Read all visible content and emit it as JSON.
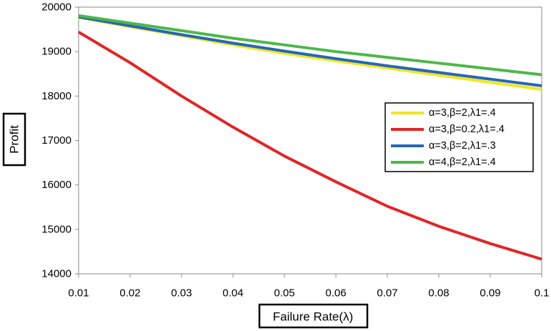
{
  "chart_data": {
    "type": "line",
    "title": "",
    "xlabel": "Failure Rate(λ)",
    "ylabel": "Profit",
    "x": [
      0.01,
      0.02,
      0.03,
      0.04,
      0.05,
      0.06,
      0.07,
      0.08,
      0.09,
      0.1
    ],
    "x_tick_labels": [
      "0.01",
      "0.02",
      "0.03",
      "0.04",
      "0.05",
      "0.06",
      "0.07",
      "0.08",
      "0.09",
      "0.1"
    ],
    "y_tick_labels": [
      "14000",
      "15000",
      "16000",
      "17000",
      "18000",
      "19000",
      "20000"
    ],
    "y_ticks": [
      14000,
      15000,
      16000,
      17000,
      18000,
      19000,
      20000
    ],
    "xlim": [
      0.01,
      0.1
    ],
    "ylim": [
      14000,
      20000
    ],
    "grid": false,
    "legend_position": "right-middle",
    "series": [
      {
        "name": "α=3,β=2,λ1=.4",
        "color": "#f5e61b",
        "values": [
          19770,
          19560,
          19360,
          19150,
          18960,
          18790,
          18630,
          18470,
          18310,
          18150
        ]
      },
      {
        "name": "α=3,β=0.2,λ1=.4",
        "color": "#e32424",
        "values": [
          19440,
          18750,
          18000,
          17300,
          16650,
          16070,
          15520,
          15070,
          14680,
          14330
        ]
      },
      {
        "name": "α=3,β=2,λ1=.3",
        "color": "#2567b8",
        "values": [
          19780,
          19580,
          19380,
          19190,
          19010,
          18840,
          18680,
          18530,
          18380,
          18230
        ]
      },
      {
        "name": "α=4,β=2,λ1=.4",
        "color": "#4cb848",
        "values": [
          19810,
          19640,
          19470,
          19300,
          19150,
          19000,
          18870,
          18740,
          18610,
          18480
        ]
      }
    ]
  }
}
